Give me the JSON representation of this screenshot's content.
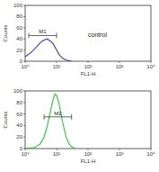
{
  "chart_data": [
    {
      "type": "line",
      "color": "#3a3fb0",
      "log": "x",
      "x_label": "FL1-H",
      "y_label": "Counts",
      "annotations": [
        "control"
      ],
      "gate": {
        "label": "M1",
        "x": [
          1.3,
          10
        ],
        "y": 46
      },
      "x": [
        1,
        1.5,
        2,
        2.5,
        3,
        3.5,
        4,
        5,
        6,
        7,
        8,
        10,
        12,
        15,
        20,
        25,
        30
      ],
      "values": [
        8,
        15,
        22,
        28,
        33,
        36,
        38,
        40,
        37,
        34,
        30,
        20,
        12,
        6,
        2,
        1,
        0
      ],
      "xlim": [
        1,
        10000
      ],
      "xticks": [
        {
          "value": 1,
          "label": "10⁰"
        },
        {
          "value": 10,
          "label": "10¹"
        },
        {
          "value": 100,
          "label": "10²"
        },
        {
          "value": 1000,
          "label": "10³"
        },
        {
          "value": 10000,
          "label": "10⁴"
        }
      ],
      "ylim": [
        0,
        100
      ],
      "yticks": [
        0,
        20,
        40,
        60,
        80,
        100
      ]
    },
    {
      "type": "line",
      "color": "#2fbf3a",
      "log": "x",
      "x_label": "FL1-H",
      "y_label": "Counts",
      "gate": {
        "label": "M2",
        "x": [
          4,
          30
        ],
        "y": 55
      },
      "x": [
        1,
        2,
        3,
        4,
        5,
        6,
        7,
        8,
        9,
        10,
        12,
        15,
        20,
        25,
        30,
        40
      ],
      "values": [
        0,
        2,
        8,
        20,
        38,
        58,
        75,
        88,
        95,
        92,
        78,
        50,
        20,
        8,
        3,
        0
      ],
      "xlim": [
        1,
        10000
      ],
      "xticks": [
        {
          "value": 1,
          "label": "10⁰"
        },
        {
          "value": 10,
          "label": "10¹"
        },
        {
          "value": 100,
          "label": "10²"
        },
        {
          "value": 1000,
          "label": "10³"
        },
        {
          "value": 10000,
          "label": "10⁴"
        }
      ],
      "ylim": [
        0,
        100
      ],
      "yticks": [
        0,
        20,
        40,
        60,
        80,
        100
      ]
    }
  ]
}
